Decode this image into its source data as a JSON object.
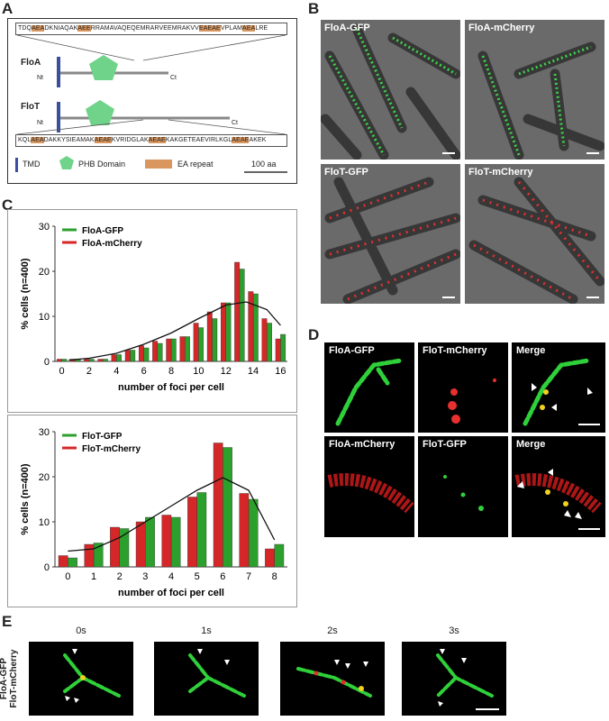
{
  "panels": {
    "A": "A",
    "B": "B",
    "C": "C",
    "D": "D",
    "E": "E"
  },
  "panel_a": {
    "seq_top": "TDQAEADKNIAQAKAEERRAMAVAQEQEMRARVEEMRAKVVEAEAEVPLAMAEALRE",
    "seq_bottom": "KQLAEADAKKYSIEAMAKAEAEKVRIDGLAKAEAEKAKGETEAEVIRLKGLAEAEAKEK",
    "floa_label": "FloA",
    "flot_label": "FloT",
    "nt": "Nt",
    "ct": "Ct",
    "legend": {
      "tmd": "TMD",
      "phb": "PHB Domain",
      "ea": "EA repeat"
    },
    "scale": "100 aa",
    "colors": {
      "tmd": "#3a4fa0",
      "phb": "#6fd38a",
      "ea": "#d9975f"
    }
  },
  "panel_b": {
    "labels": [
      "FloA-GFP",
      "FloA-mCherry",
      "FloT-GFP",
      "FloT-mCherry"
    ]
  },
  "panel_d": {
    "row1": [
      "FloA-GFP",
      "FloT-mCherry",
      "Merge"
    ],
    "row2": [
      "FloA-mCherry",
      "FloT-GFP",
      "Merge"
    ]
  },
  "panel_e": {
    "times": [
      "0s",
      "1s",
      "2s",
      "3s"
    ],
    "side_label_1": "FloA-GFP",
    "side_label_2": "FloT-mCherry"
  },
  "chart_data": [
    {
      "type": "bar",
      "title": "",
      "xlabel": "number of foci per cell",
      "ylabel": "% cells  (n=400)",
      "ylim": [
        0,
        30
      ],
      "yticks": [
        0,
        10,
        20,
        30
      ],
      "categories": [
        0,
        1,
        2,
        3,
        4,
        5,
        6,
        7,
        8,
        9,
        10,
        11,
        12,
        13,
        14,
        15,
        16
      ],
      "xtick_labels": [
        "0",
        "2",
        "4",
        "6",
        "8",
        "10",
        "12",
        "14",
        "16"
      ],
      "legend_position": "top-left",
      "series": [
        {
          "name": "FloA-GFP",
          "color": "#2ca02c",
          "values": [
            0.5,
            0.5,
            0.5,
            0.5,
            1.5,
            2.5,
            3,
            4,
            5,
            5.5,
            7.5,
            9.5,
            13,
            20.5,
            15,
            8.5,
            6
          ]
        },
        {
          "name": "FloA-mCherry",
          "color": "#d62728",
          "values": [
            0.5,
            0.5,
            0.5,
            0.5,
            1.5,
            2.5,
            3.5,
            4.5,
            5,
            5.5,
            8.5,
            11,
            13,
            22,
            15.5,
            9.5,
            5
          ]
        }
      ],
      "trend": [
        [
          0.5,
          0.3
        ],
        [
          2,
          0.7
        ],
        [
          4,
          1.8
        ],
        [
          6,
          3.8
        ],
        [
          8,
          6.3
        ],
        [
          10,
          9.5
        ],
        [
          12,
          12.5
        ],
        [
          13.5,
          13.2
        ],
        [
          15,
          11.5
        ],
        [
          16,
          8
        ]
      ]
    },
    {
      "type": "bar",
      "title": "",
      "xlabel": "number of foci per cell",
      "ylabel": "% cells  (n=400)",
      "ylim": [
        0,
        30
      ],
      "yticks": [
        0,
        10,
        20,
        30
      ],
      "categories": [
        0,
        1,
        2,
        3,
        4,
        5,
        6,
        7,
        8
      ],
      "xtick_labels": [
        "0",
        "1",
        "2",
        "3",
        "4",
        "5",
        "6",
        "7",
        "8"
      ],
      "legend_position": "top-left",
      "series": [
        {
          "name": "FloT-GFP",
          "color": "#2ca02c",
          "values": [
            2,
            5.3,
            8.5,
            11,
            11,
            16.5,
            26.5,
            15,
            5
          ]
        },
        {
          "name": "FloT-mCherry",
          "color": "#d62728",
          "values": [
            2.5,
            5,
            8.8,
            10,
            11.5,
            15.5,
            27.5,
            16.3,
            4
          ]
        }
      ],
      "trend": [
        [
          0,
          3.5
        ],
        [
          1,
          4
        ],
        [
          2,
          6.5
        ],
        [
          3,
          10
        ],
        [
          4,
          13.5
        ],
        [
          5,
          17
        ],
        [
          6,
          19.8
        ],
        [
          7,
          17
        ],
        [
          8,
          6
        ]
      ]
    }
  ]
}
